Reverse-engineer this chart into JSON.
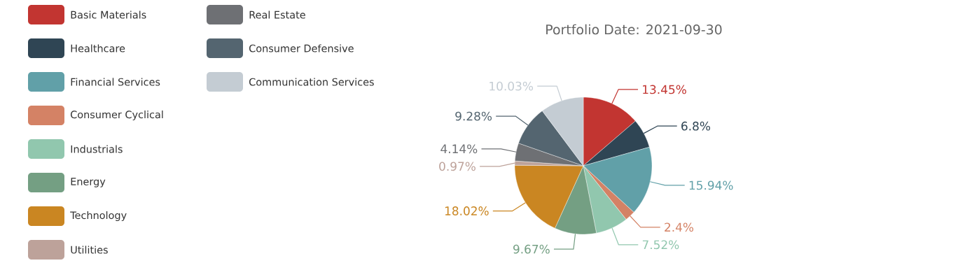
{
  "chart_data": {
    "type": "pie",
    "title": "Portfolio Date: 2021-09-30",
    "categories": [
      "Basic Materials",
      "Healthcare",
      "Financial Services",
      "Consumer Cyclical",
      "Industrials",
      "Energy",
      "Technology",
      "Utilities",
      "Real Estate",
      "Consumer Defensive",
      "Communication Services"
    ],
    "values": [
      13.45,
      6.8,
      15.94,
      2.4,
      7.52,
      9.67,
      18.02,
      0.97,
      4.14,
      9.28,
      10.03
    ],
    "value_labels": [
      "13.45%",
      "6.8%",
      "15.94%",
      "2.4%",
      "7.52%",
      "9.67%",
      "18.02%",
      "0.97%",
      "4.14%",
      "9.28%",
      "10.03%"
    ],
    "colors": [
      "#c23531",
      "#2f4554",
      "#61a0a8",
      "#d48265",
      "#91c7ae",
      "#749f83",
      "#ca8622",
      "#bda29a",
      "#6e7074",
      "#546570",
      "#c4ccd3"
    ],
    "legend": "top left"
  }
}
